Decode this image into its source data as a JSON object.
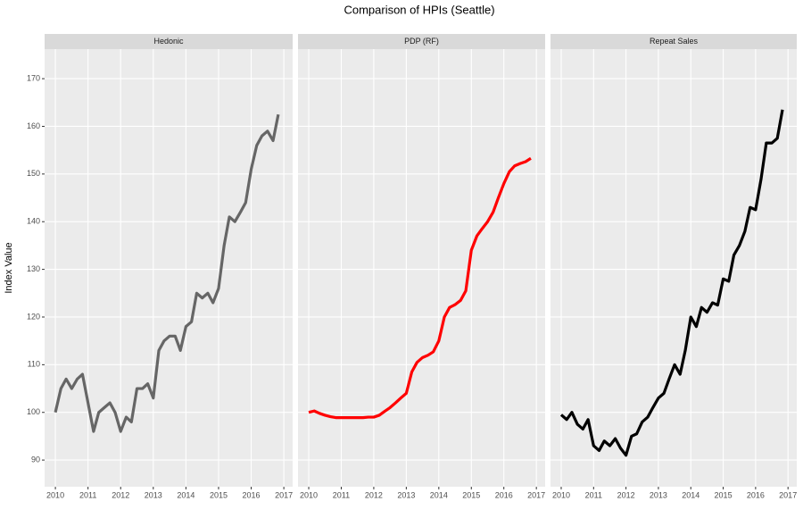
{
  "title": "Comparison of HPIs (Seattle)",
  "ylabel": "Index Value",
  "chart_data": [
    {
      "type": "line",
      "title": "Hedonic",
      "color": "#666666",
      "x": [
        2010,
        2010.17,
        2010.33,
        2010.5,
        2010.67,
        2010.83,
        2011,
        2011.17,
        2011.33,
        2011.5,
        2011.67,
        2011.83,
        2012,
        2012.17,
        2012.33,
        2012.5,
        2012.67,
        2012.83,
        2013,
        2013.17,
        2013.33,
        2013.5,
        2013.67,
        2013.83,
        2014,
        2014.17,
        2014.33,
        2014.5,
        2014.67,
        2014.83,
        2015,
        2015.17,
        2015.33,
        2015.5,
        2015.67,
        2015.83,
        2016,
        2016.17,
        2016.33,
        2016.5,
        2016.67,
        2016.83
      ],
      "values": [
        100,
        105,
        107,
        105,
        107,
        108,
        102,
        96,
        100,
        101,
        102,
        100,
        96,
        99,
        98,
        105,
        105,
        106,
        103,
        113,
        115,
        116,
        116,
        113,
        118,
        119,
        125,
        124,
        125,
        123,
        126,
        135,
        141,
        140,
        142,
        144,
        151,
        156,
        158,
        159,
        157,
        162.5
      ],
      "xlim": [
        2009.67,
        2017.27
      ],
      "xticks": [
        2010,
        2011,
        2012,
        2013,
        2014,
        2015,
        2016,
        2017
      ],
      "ylim": [
        84.4,
        176.2
      ],
      "yticks": [
        90,
        100,
        110,
        120,
        130,
        140,
        150,
        160,
        170
      ],
      "grid": true
    },
    {
      "type": "line",
      "title": "PDP (RF)",
      "color": "#ff0000",
      "x": [
        2010,
        2010.17,
        2010.33,
        2010.5,
        2010.67,
        2010.83,
        2011,
        2011.17,
        2011.33,
        2011.5,
        2011.67,
        2011.83,
        2012,
        2012.17,
        2012.33,
        2012.5,
        2012.67,
        2012.83,
        2013,
        2013.17,
        2013.33,
        2013.5,
        2013.67,
        2013.83,
        2014,
        2014.17,
        2014.33,
        2014.5,
        2014.67,
        2014.83,
        2015,
        2015.17,
        2015.33,
        2015.5,
        2015.67,
        2015.83,
        2016,
        2016.17,
        2016.33,
        2016.5,
        2016.67,
        2016.83
      ],
      "values": [
        100,
        100.3,
        99.8,
        99.4,
        99.1,
        98.9,
        98.9,
        98.9,
        98.9,
        98.9,
        98.9,
        99,
        99,
        99.4,
        100.2,
        101,
        102,
        103,
        104,
        108.5,
        110.5,
        111.5,
        112,
        112.7,
        115,
        120,
        122,
        122.6,
        123.5,
        125.5,
        134,
        137,
        138.5,
        140,
        142,
        145,
        148,
        150.5,
        151.7,
        152.2,
        152.6,
        153.3
      ],
      "xlim": [
        2009.67,
        2017.27
      ],
      "xticks": [
        2010,
        2011,
        2012,
        2013,
        2014,
        2015,
        2016,
        2017
      ],
      "ylim": [
        84.4,
        176.2
      ],
      "yticks": [
        90,
        100,
        110,
        120,
        130,
        140,
        150,
        160,
        170
      ],
      "grid": true
    },
    {
      "type": "line",
      "title": "Repeat Sales",
      "color": "#000000",
      "x": [
        2010,
        2010.17,
        2010.33,
        2010.5,
        2010.67,
        2010.83,
        2011,
        2011.17,
        2011.33,
        2011.5,
        2011.67,
        2011.83,
        2012,
        2012.17,
        2012.33,
        2012.5,
        2012.67,
        2012.83,
        2013,
        2013.17,
        2013.33,
        2013.5,
        2013.67,
        2013.83,
        2014,
        2014.17,
        2014.33,
        2014.5,
        2014.67,
        2014.83,
        2015,
        2015.17,
        2015.33,
        2015.5,
        2015.67,
        2015.83,
        2016,
        2016.17,
        2016.33,
        2016.5,
        2016.67,
        2016.83
      ],
      "values": [
        99.5,
        98.5,
        100,
        97.5,
        96.5,
        98.5,
        93,
        92,
        94,
        93,
        94.5,
        92.5,
        91,
        95,
        95.5,
        98,
        99,
        101,
        103,
        104,
        107,
        110,
        108,
        113,
        120,
        118,
        122,
        121,
        123,
        122.5,
        128,
        127.5,
        133,
        135,
        138,
        143,
        142.5,
        149,
        156.5,
        156.5,
        157.5,
        163.5
      ],
      "xlim": [
        2009.67,
        2017.27
      ],
      "xticks": [
        2010,
        2011,
        2012,
        2013,
        2014,
        2015,
        2016,
        2017
      ],
      "ylim": [
        84.4,
        176.2
      ],
      "yticks": [
        90,
        100,
        110,
        120,
        130,
        140,
        150,
        160,
        170
      ],
      "grid": true
    }
  ]
}
